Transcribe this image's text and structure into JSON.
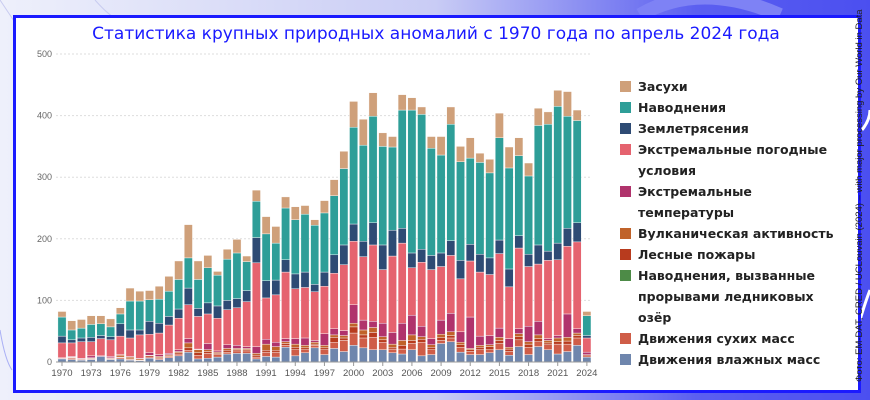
{
  "chart_data": {
    "type": "bar",
    "stacked": true,
    "title": "Статистика крупных природных аномалий с 1970 года по апрель 2024 года",
    "xlabel": "",
    "ylabel": "",
    "ylim": [
      0,
      500
    ],
    "yticks": [
      0,
      100,
      200,
      300,
      400,
      500
    ],
    "xtick_labels": [
      "1970",
      "1973",
      "1976",
      "1979",
      "1982",
      "1985",
      "1988",
      "1991",
      "1994",
      "1997",
      "2000",
      "2003",
      "2006",
      "2009",
      "2012",
      "2015",
      "2018",
      "2021",
      "2024"
    ],
    "grid": true,
    "legend_position": "right",
    "categories": [
      1970,
      1971,
      1972,
      1973,
      1974,
      1975,
      1976,
      1977,
      1978,
      1979,
      1980,
      1981,
      1982,
      1983,
      1984,
      1985,
      1986,
      1987,
      1988,
      1989,
      1990,
      1991,
      1992,
      1993,
      1994,
      1995,
      1996,
      1997,
      1998,
      1999,
      2000,
      2001,
      2002,
      2003,
      2004,
      2005,
      2006,
      2007,
      2008,
      2009,
      2010,
      2011,
      2012,
      2013,
      2014,
      2015,
      2016,
      2017,
      2018,
      2019,
      2020,
      2021,
      2022,
      2023,
      2024
    ],
    "series": [
      {
        "name": "Движения влажных масс",
        "color": "#6f86ad",
        "values": [
          5,
          4,
          3,
          4,
          9,
          4,
          5,
          3,
          2,
          6,
          4,
          7,
          10,
          16,
          5,
          6,
          8,
          13,
          14,
          14,
          5,
          9,
          8,
          24,
          10,
          15,
          23,
          12,
          22,
          17,
          27,
          23,
          20,
          20,
          15,
          13,
          20,
          10,
          12,
          30,
          33,
          16,
          12,
          12,
          15,
          20,
          11,
          25,
          12,
          25,
          20,
          13,
          17,
          27,
          8
        ]
      },
      {
        "name": "Движения сухих масс",
        "color": "#cf5d48",
        "values": [
          1,
          2,
          1,
          1,
          0,
          1,
          2,
          1,
          1,
          2,
          2,
          2,
          3,
          3,
          6,
          8,
          4,
          3,
          4,
          4,
          3,
          7,
          8,
          3,
          10,
          5,
          4,
          8,
          10,
          18,
          20,
          16,
          20,
          12,
          6,
          8,
          10,
          22,
          8,
          5,
          6,
          8,
          5,
          8,
          5,
          10,
          6,
          11,
          12,
          8,
          8,
          16,
          12,
          12,
          2
        ]
      },
      {
        "name": "Наводнения, вызванные прорывами ледниковых озёр",
        "color": "#4d8b47",
        "values": [
          0,
          0,
          0,
          0,
          0,
          0,
          0,
          0,
          0,
          0,
          0,
          0,
          0,
          0,
          0,
          0,
          0,
          0,
          0,
          0,
          0,
          0,
          0,
          0,
          0,
          0,
          0,
          0,
          0,
          0,
          0,
          0,
          0,
          0,
          0,
          0,
          0,
          0,
          0,
          0,
          0,
          0,
          0,
          0,
          0,
          0,
          0,
          0,
          0,
          0,
          0,
          0,
          0,
          0,
          0
        ]
      },
      {
        "name": "Лесные пожары",
        "color": "#b83b1e",
        "values": [
          0,
          1,
          1,
          1,
          0,
          1,
          1,
          1,
          0,
          2,
          1,
          1,
          2,
          4,
          4,
          3,
          2,
          3,
          2,
          2,
          3,
          3,
          3,
          3,
          4,
          3,
          2,
          3,
          8,
          4,
          10,
          5,
          8,
          4,
          3,
          6,
          5,
          5,
          4,
          5,
          4,
          4,
          3,
          4,
          5,
          5,
          4,
          5,
          5,
          5,
          3,
          4,
          5,
          4,
          2
        ]
      },
      {
        "name": "Вулканическая активность",
        "color": "#c0632a",
        "values": [
          0,
          1,
          0,
          1,
          0,
          1,
          3,
          3,
          2,
          1,
          2,
          2,
          2,
          8,
          5,
          3,
          2,
          3,
          2,
          2,
          3,
          10,
          6,
          3,
          5,
          4,
          3,
          4,
          4,
          4,
          6,
          8,
          8,
          5,
          5,
          8,
          9,
          4,
          4,
          5,
          6,
          4,
          2,
          3,
          3,
          5,
          3,
          5,
          4,
          6,
          4,
          6,
          6,
          4,
          0
        ]
      },
      {
        "name": "Экстремальные температуры",
        "color": "#b0336c",
        "values": [
          1,
          1,
          1,
          3,
          1,
          2,
          1,
          1,
          1,
          4,
          3,
          2,
          3,
          7,
          1,
          10,
          2,
          6,
          5,
          3,
          11,
          8,
          7,
          5,
          9,
          12,
          3,
          19,
          10,
          8,
          30,
          16,
          10,
          22,
          19,
          28,
          32,
          17,
          10,
          23,
          30,
          17,
          51,
          15,
          15,
          15,
          14,
          8,
          25,
          22,
          3,
          4,
          38,
          7,
          4
        ]
      },
      {
        "name": "Экстремальные погодные условия",
        "color": "#e5636f",
        "values": [
          24,
          22,
          27,
          23,
          28,
          27,
          30,
          30,
          38,
          30,
          35,
          46,
          51,
          55,
          53,
          48,
          53,
          57,
          61,
          73,
          136,
          67,
          77,
          108,
          81,
          82,
          79,
          77,
          90,
          107,
          103,
          103,
          124,
          87,
          124,
          130,
          77,
          104,
          112,
          87,
          94,
          86,
          91,
          104,
          99,
          121,
          84,
          131,
          97,
          93,
          127,
          123,
          110,
          141,
          23
        ]
      },
      {
        "name": "Землетрясения",
        "color": "#2e4b74",
        "values": [
          11,
          5,
          6,
          7,
          5,
          5,
          20,
          13,
          8,
          21,
          16,
          14,
          15,
          27,
          13,
          18,
          20,
          15,
          15,
          18,
          41,
          28,
          24,
          20,
          24,
          25,
          12,
          23,
          30,
          32,
          28,
          25,
          36,
          40,
          42,
          24,
          24,
          21,
          23,
          22,
          24,
          30,
          27,
          29,
          27,
          22,
          29,
          20,
          20,
          31,
          15,
          27,
          29,
          31,
          4
        ]
      },
      {
        "name": "Наводнения",
        "color": "#2e9e98",
        "values": [
          31,
          16,
          16,
          21,
          19,
          16,
          16,
          47,
          47,
          35,
          39,
          41,
          48,
          49,
          47,
          57,
          50,
          67,
          74,
          47,
          59,
          76,
          60,
          84,
          88,
          94,
          96,
          96,
          96,
          124,
          157,
          156,
          173,
          160,
          135,
          192,
          232,
          219,
          174,
          159,
          189,
          160,
          140,
          149,
          138,
          166,
          164,
          130,
          127,
          194,
          206,
          222,
          182,
          166,
          32
        ]
      },
      {
        "name": "Засухи",
        "color": "#cfa07a",
        "values": [
          9,
          15,
          14,
          14,
          13,
          13,
          10,
          21,
          16,
          15,
          21,
          24,
          30,
          54,
          30,
          20,
          6,
          16,
          22,
          9,
          18,
          28,
          27,
          18,
          21,
          14,
          9,
          20,
          26,
          28,
          42,
          42,
          38,
          22,
          17,
          25,
          20,
          12,
          19,
          30,
          28,
          25,
          33,
          15,
          22,
          40,
          34,
          29,
          21,
          28,
          20,
          26,
          40,
          17,
          7
        ]
      }
    ]
  },
  "legend": [
    {
      "label": "Засухи",
      "color": "#cfa07a"
    },
    {
      "label": "Наводнения",
      "color": "#2e9e98"
    },
    {
      "label": "Землетрясения",
      "color": "#2e4b74"
    },
    {
      "label": "Экстремальные погодные условия",
      "color": "#e5636f"
    },
    {
      "label": "Экстремальные температуры",
      "color": "#b0336c"
    },
    {
      "label": "Вулканическая активность",
      "color": "#c0632a"
    },
    {
      "label": "Лесные пожары",
      "color": "#b83b1e"
    },
    {
      "label": "Наводнения, вызванные прорывами ледниковых озёр",
      "color": "#4d8b47"
    },
    {
      "label": "Движения сухих масс",
      "color": "#cf5d48"
    },
    {
      "label": "Движения влажных масс",
      "color": "#6f86ad"
    }
  ],
  "credit": "Фото: EM-DAT, CRED / UCLouvain (2024) – with major processing by Our World in Data"
}
